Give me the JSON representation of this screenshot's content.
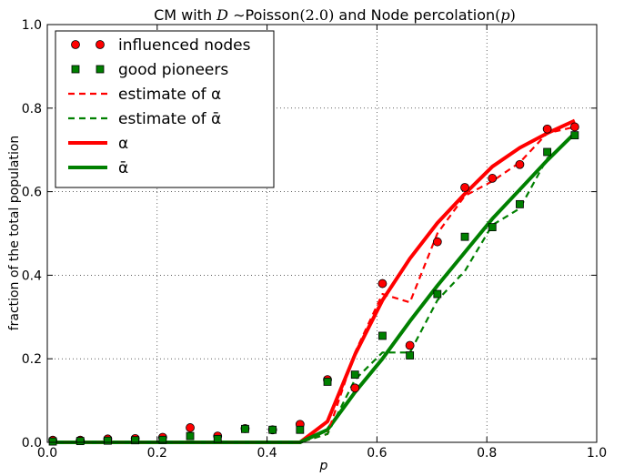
{
  "chart_data": {
    "type": "line",
    "title": "CM with D ~Poisson(2.0) and Node percolation(p)",
    "xlabel": "p",
    "ylabel": "fraction of the total population",
    "xlim": [
      0.0,
      1.0
    ],
    "ylim": [
      0.0,
      1.0
    ],
    "xticks": [
      "0.0",
      "0.2",
      "0.4",
      "0.6",
      "0.8",
      "1.0"
    ],
    "yticks": [
      "0.0",
      "0.2",
      "0.4",
      "0.6",
      "0.8",
      "1.0"
    ],
    "grid": true,
    "legend_position": "top-left",
    "series": [
      {
        "name": "influenced nodes",
        "style": "red-circles",
        "color": "#ff0000",
        "x": [
          0.01,
          0.06,
          0.11,
          0.16,
          0.21,
          0.26,
          0.31,
          0.36,
          0.41,
          0.46,
          0.51,
          0.56,
          0.61,
          0.66,
          0.71,
          0.76,
          0.81,
          0.86,
          0.91,
          0.96
        ],
        "y": [
          0.005,
          0.005,
          0.008,
          0.009,
          0.012,
          0.035,
          0.015,
          0.033,
          0.03,
          0.043,
          0.15,
          0.13,
          0.38,
          0.232,
          0.48,
          0.61,
          0.632,
          0.665,
          0.75,
          0.755
        ]
      },
      {
        "name": "good pioneers",
        "style": "green-squares",
        "color": "#008000",
        "x": [
          0.01,
          0.06,
          0.11,
          0.16,
          0.21,
          0.26,
          0.31,
          0.36,
          0.41,
          0.46,
          0.51,
          0.56,
          0.61,
          0.66,
          0.71,
          0.76,
          0.81,
          0.86,
          0.91,
          0.96
        ],
        "y": [
          0.002,
          0.003,
          0.004,
          0.005,
          0.006,
          0.015,
          0.008,
          0.032,
          0.03,
          0.03,
          0.145,
          0.162,
          0.255,
          0.208,
          0.355,
          0.492,
          0.515,
          0.57,
          0.695,
          0.735
        ]
      },
      {
        "name": "estimate of α",
        "style": "red-dashed",
        "color": "#ff0000",
        "x": [
          0.01,
          0.06,
          0.11,
          0.16,
          0.21,
          0.26,
          0.31,
          0.36,
          0.41,
          0.46,
          0.51,
          0.56,
          0.61,
          0.66,
          0.71,
          0.76,
          0.81,
          0.86,
          0.91,
          0.96
        ],
        "y": [
          0.0,
          0.0,
          0.0,
          0.0,
          0.0,
          0.0,
          0.0,
          0.0,
          0.0,
          0.0,
          0.02,
          0.215,
          0.355,
          0.335,
          0.5,
          0.59,
          0.625,
          0.67,
          0.74,
          0.755
        ]
      },
      {
        "name": "estimate of ᾱ",
        "style": "green-dashed",
        "color": "#008000",
        "x": [
          0.01,
          0.06,
          0.11,
          0.16,
          0.21,
          0.26,
          0.31,
          0.36,
          0.41,
          0.46,
          0.51,
          0.56,
          0.61,
          0.66,
          0.71,
          0.76,
          0.81,
          0.86,
          0.91,
          0.96
        ],
        "y": [
          0.0,
          0.0,
          0.0,
          0.0,
          0.0,
          0.0,
          0.0,
          0.0,
          0.0,
          0.0,
          0.02,
          0.15,
          0.215,
          0.215,
          0.34,
          0.41,
          0.52,
          0.56,
          0.68,
          0.735
        ]
      },
      {
        "name": "α",
        "style": "red-solid",
        "color": "#ff0000",
        "x": [
          0.01,
          0.06,
          0.11,
          0.16,
          0.21,
          0.26,
          0.31,
          0.36,
          0.41,
          0.46,
          0.51,
          0.56,
          0.61,
          0.66,
          0.71,
          0.76,
          0.81,
          0.86,
          0.91,
          0.96
        ],
        "y": [
          0.0,
          0.0,
          0.0,
          0.0,
          0.0,
          0.0,
          0.0,
          0.0,
          0.0,
          0.0,
          0.05,
          0.21,
          0.34,
          0.44,
          0.525,
          0.595,
          0.66,
          0.705,
          0.74,
          0.77
        ]
      },
      {
        "name": "ᾱ",
        "style": "green-solid",
        "color": "#008000",
        "x": [
          0.01,
          0.06,
          0.11,
          0.16,
          0.21,
          0.26,
          0.31,
          0.36,
          0.41,
          0.46,
          0.51,
          0.56,
          0.61,
          0.66,
          0.71,
          0.76,
          0.81,
          0.86,
          0.91,
          0.96
        ],
        "y": [
          0.0,
          0.0,
          0.0,
          0.0,
          0.0,
          0.0,
          0.0,
          0.0,
          0.0,
          0.0,
          0.03,
          0.12,
          0.2,
          0.29,
          0.375,
          0.455,
          0.535,
          0.605,
          0.675,
          0.74
        ]
      }
    ]
  }
}
